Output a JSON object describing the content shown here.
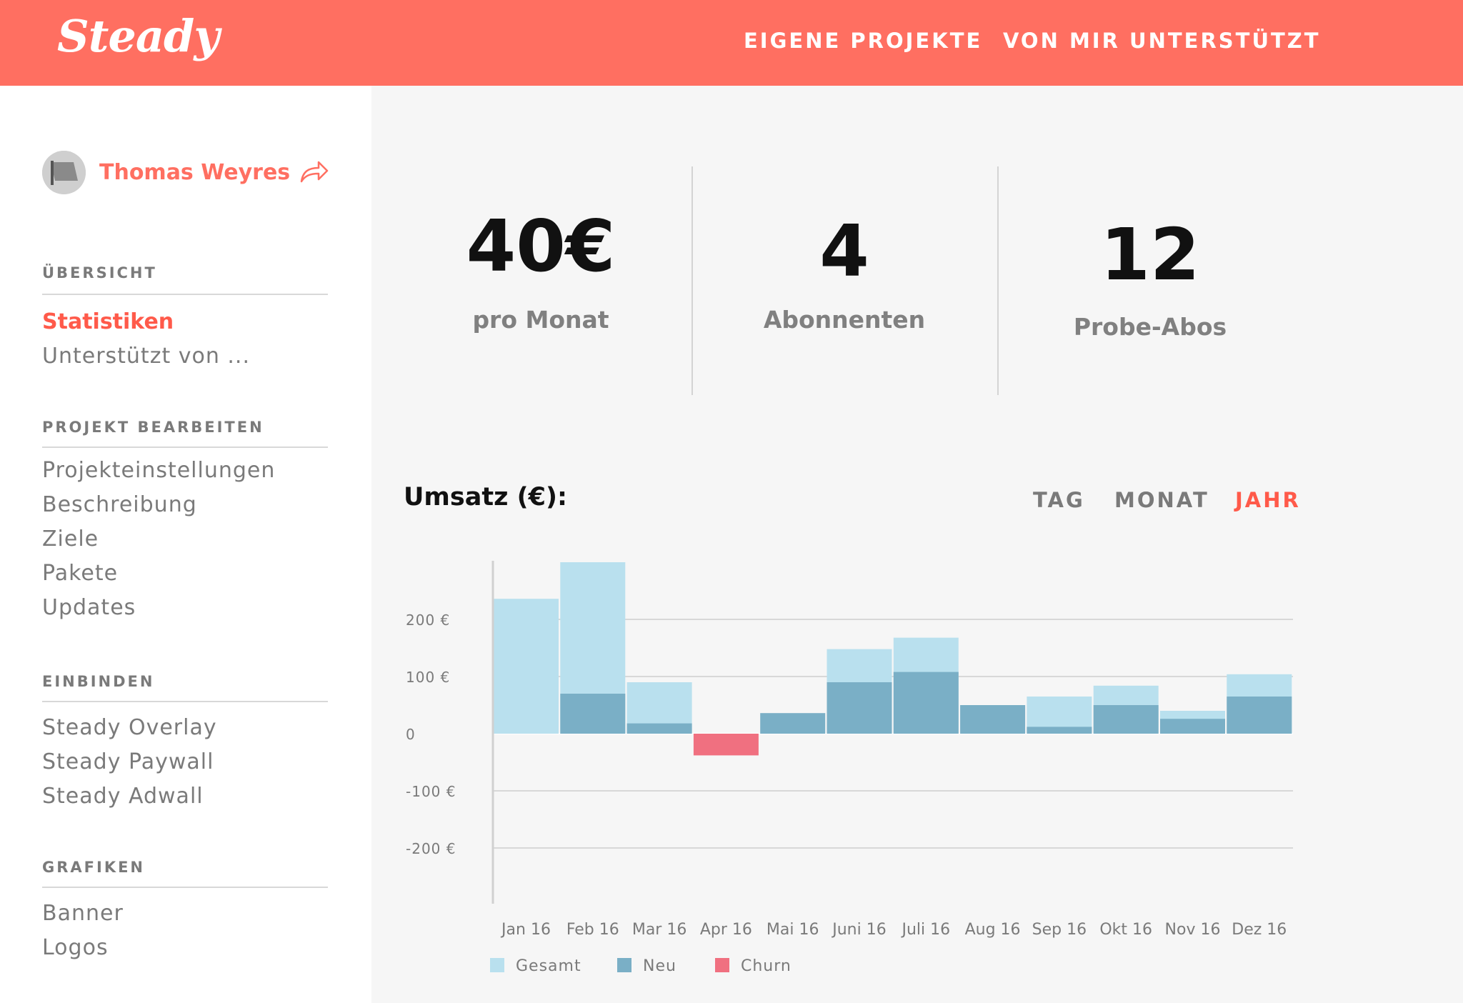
{
  "header": {
    "logo": "Steady",
    "nav": [
      "EIGENE PROJEKTE",
      "VON MIR UNTERSTÜTZT"
    ],
    "brand_color": "#ff6f61"
  },
  "sidebar": {
    "user": {
      "name": "Thomas Weyres",
      "avatar_icon": "avatar-flag-icon",
      "share_icon": "share-arrow-icon"
    },
    "sections": [
      {
        "title": "ÜBERSICHT",
        "items": [
          "Statistiken",
          "Unterstützt von ..."
        ]
      },
      {
        "title": "PROJEKT BEARBEITEN",
        "items": [
          "Projekteinstellungen",
          "Beschreibung",
          "Ziele",
          "Pakete",
          "Updates"
        ]
      },
      {
        "title": "EINBINDEN",
        "items": [
          "Steady Overlay",
          "Steady Paywall",
          "Steady Adwall"
        ]
      },
      {
        "title": "GRAFIKEN",
        "items": [
          "Banner",
          "Logos"
        ]
      }
    ],
    "active_item": "Statistiken"
  },
  "stats": [
    {
      "value": "40€",
      "label": "pro Monat"
    },
    {
      "value": "4",
      "label": "Abonnenten"
    },
    {
      "value": "12",
      "label": "Probe-Abos"
    }
  ],
  "chart_header": {
    "title": "Umsatz (€):",
    "periods": [
      "TAG",
      "MONAT",
      "JAHR"
    ],
    "active_period": "JAHR"
  },
  "chart_data": {
    "type": "bar",
    "title": "Umsatz (€):",
    "categories": [
      "Jan 16",
      "Feb 16",
      "Mar 16",
      "Apr 16",
      "Mai 16",
      "Juni 16",
      "Juli 16",
      "Aug 16",
      "Sep 16",
      "Okt 16",
      "Nov 16",
      "Dez 16"
    ],
    "series": [
      {
        "name": "Gesamt",
        "color": "#b9e0ee",
        "values": [
          236,
          300,
          90,
          0,
          0,
          148,
          168,
          0,
          65,
          84,
          40,
          104
        ]
      },
      {
        "name": "Neu",
        "color": "#7aafc6",
        "values": [
          0,
          70,
          18,
          0,
          36,
          90,
          108,
          50,
          12,
          50,
          26,
          65
        ]
      },
      {
        "name": "Churn",
        "color": "#f07080",
        "values": [
          0,
          0,
          0,
          -38,
          0,
          0,
          0,
          0,
          0,
          0,
          0,
          0
        ]
      }
    ],
    "yticks": [
      200,
      100,
      0,
      -100,
      -200
    ],
    "ytick_labels": [
      "200 €",
      "100 €",
      "0",
      "-100 €",
      "-200 €"
    ],
    "ylim": [
      -290,
      300
    ],
    "grid": true,
    "legend": "bottom-left"
  }
}
